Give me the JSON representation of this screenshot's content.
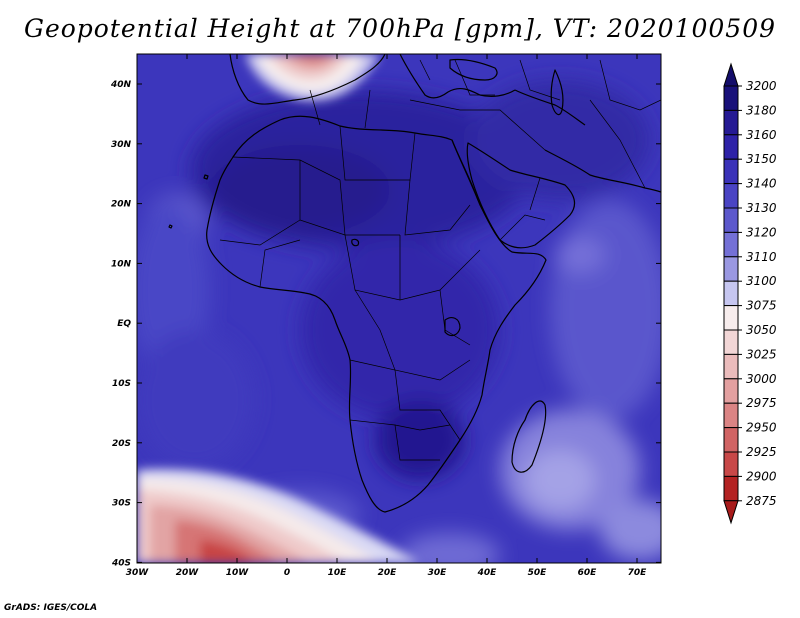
{
  "title": "Geopotential Height at 700hPa [gpm], VT: 2020100509",
  "credit": "GrADS: IGES/COLA",
  "map": {
    "lon_ticks": [
      "30W",
      "20W",
      "10W",
      "0",
      "10E",
      "20E",
      "30E",
      "40E",
      "50E",
      "60E",
      "70E"
    ],
    "lat_ticks": [
      "40N",
      "30N",
      "20N",
      "10N",
      "EQ",
      "10S",
      "20S",
      "30S",
      "40S"
    ]
  },
  "colorbar": {
    "levels": [
      "3200",
      "3180",
      "3160",
      "3150",
      "3140",
      "3130",
      "3120",
      "3110",
      "3100",
      "3075",
      "3050",
      "3025",
      "3000",
      "2975",
      "2950",
      "2925",
      "2900",
      "2875"
    ],
    "colors": [
      "#19117a",
      "#251a94",
      "#2e22a8",
      "#3a32b8",
      "#4a44c4",
      "#5c58cc",
      "#7470d6",
      "#9a98e2",
      "#c6c6f0",
      "#f7eded",
      "#f2d6d6",
      "#ebbcbc",
      "#e3a0a0",
      "#db8484",
      "#d16464",
      "#c84848",
      "#b32222"
    ],
    "top_arrow_color": "#140d6a",
    "bottom_arrow_color": "#a81b1b"
  }
}
